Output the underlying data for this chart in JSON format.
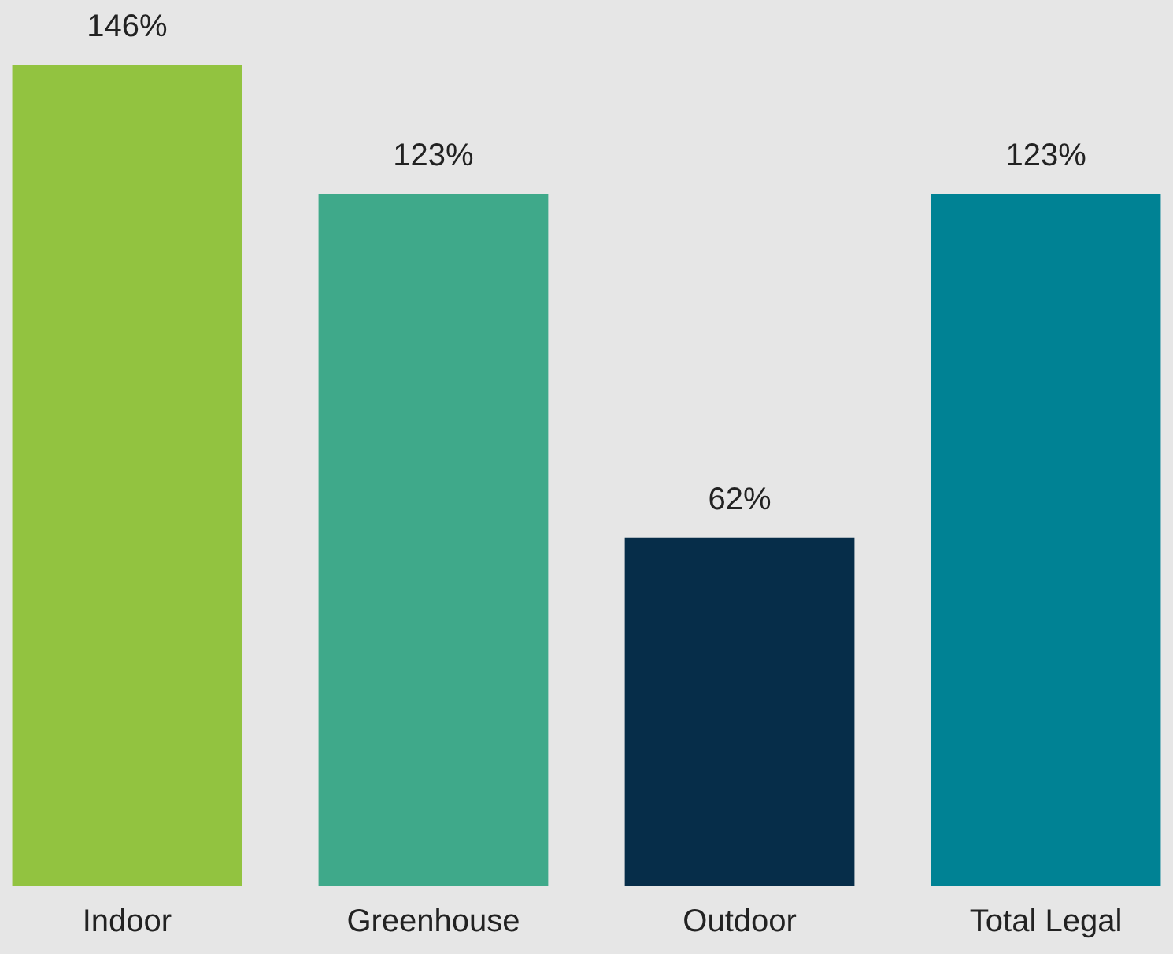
{
  "chart_data": {
    "type": "bar",
    "categories": [
      "Indoor",
      "Greenhouse",
      "Outdoor",
      "Total Legal"
    ],
    "values": [
      146,
      123,
      62,
      123
    ],
    "value_labels": [
      "146%",
      "123%",
      "62%",
      "123%"
    ],
    "colors": [
      "#92c340",
      "#3fa98a",
      "#062d49",
      "#008294"
    ]
  }
}
